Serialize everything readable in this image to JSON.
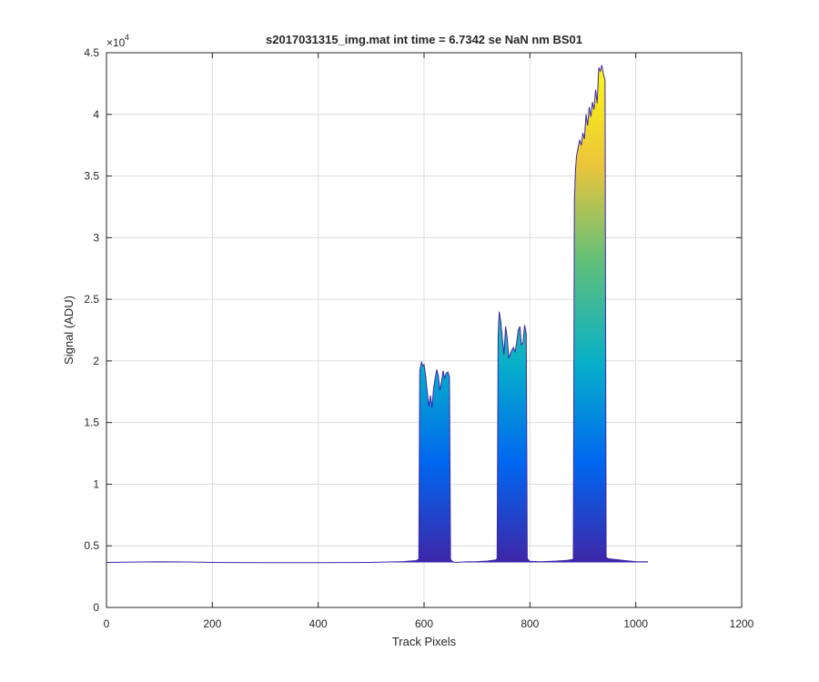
{
  "chart_data": {
    "type": "area",
    "title": "s2017031315_img.mat int time = 6.7342 se  NaN nm BS01",
    "xlabel": "Track Pixels",
    "ylabel": "Signal (ADU)",
    "xlim": [
      0,
      1200
    ],
    "ylim": [
      0,
      45000
    ],
    "xticks": [
      0,
      200,
      400,
      600,
      800,
      1000,
      1200
    ],
    "xtick_labels": [
      "0",
      "200",
      "400",
      "600",
      "800",
      "1000",
      "1200"
    ],
    "yticks": [
      0,
      5000,
      10000,
      15000,
      20000,
      25000,
      30000,
      35000,
      40000,
      45000
    ],
    "ytick_labels": [
      "0",
      "0.5",
      "1",
      "1.5",
      "2",
      "2.5",
      "3",
      "3.5",
      "4",
      "4.5"
    ],
    "y_exponent_base": "×10",
    "y_exponent_power": "4",
    "grid": true,
    "colormap": [
      "#3e26a8",
      "#0067f0",
      "#07b0c9",
      "#5ebf7b",
      "#ecc53a",
      "#f9fb0e"
    ],
    "baseline": 3650,
    "series": [
      {
        "x": [
          0,
          50,
          100,
          150,
          200,
          300,
          400,
          500,
          560,
          585,
          590,
          592,
          595,
          598,
          600,
          603,
          606,
          609,
          612,
          615,
          618,
          621,
          624,
          627,
          630,
          633,
          636,
          639,
          642,
          645,
          648,
          650,
          652,
          655,
          660,
          680,
          700,
          720,
          735,
          738,
          740,
          742,
          745,
          748,
          751,
          754,
          757,
          760,
          763,
          766,
          769,
          772,
          775,
          778,
          781,
          784,
          787,
          790,
          793,
          795,
          797,
          800,
          820,
          850,
          870,
          882,
          884,
          886,
          888,
          891,
          894,
          897,
          900,
          903,
          906,
          909,
          912,
          915,
          918,
          921,
          924,
          927,
          930,
          933,
          936,
          939,
          942,
          944,
          946,
          950,
          980,
          1000,
          1023
        ],
        "y": [
          3650,
          3680,
          3700,
          3690,
          3650,
          3640,
          3630,
          3650,
          3720,
          3800,
          3900,
          19200,
          19900,
          19600,
          19700,
          18800,
          17500,
          16300,
          17200,
          16200,
          17800,
          18600,
          19300,
          18800,
          17600,
          18300,
          19200,
          18600,
          19000,
          19100,
          18700,
          3900,
          3800,
          3700,
          3650,
          3700,
          3720,
          3760,
          3850,
          3950,
          22000,
          24000,
          23200,
          21800,
          20500,
          22800,
          21900,
          20200,
          20600,
          20900,
          21100,
          20700,
          21500,
          22500,
          22800,
          21300,
          21500,
          22900,
          22200,
          4000,
          3850,
          3750,
          3700,
          3760,
          3820,
          3900,
          33000,
          35500,
          36600,
          37300,
          37900,
          37500,
          38500,
          38000,
          40000,
          39100,
          40600,
          39800,
          41000,
          40400,
          42000,
          40900,
          43800,
          43500,
          44000,
          43200,
          42800,
          4100,
          4000,
          3950,
          3800,
          3720,
          3700
        ]
      }
    ]
  }
}
